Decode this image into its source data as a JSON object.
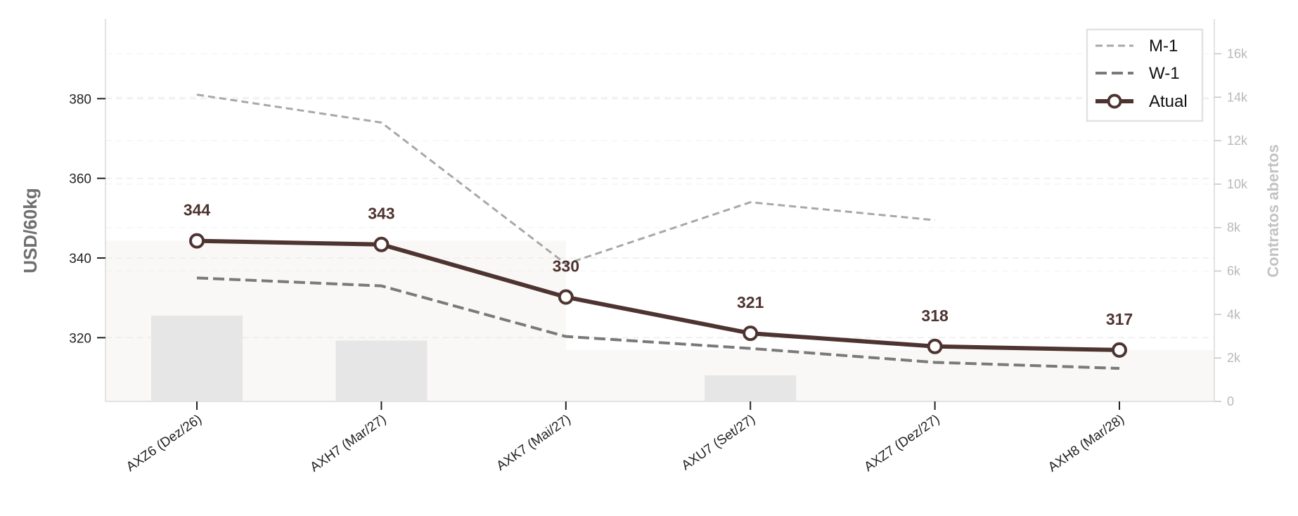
{
  "chart_data": {
    "type": "line",
    "categories": [
      "AXZ6 (Dez/26)",
      "AXH7 (Mar/27)",
      "AXK7 (Mai/27)",
      "AXU7 (Set/27)",
      "AXZ7 (Dez/27)",
      "AXH8 (Mar/28)"
    ],
    "ylabel": "USD/60kg",
    "ylabel_right": "Contratos abertos",
    "ylim": [
      304,
      400
    ],
    "yticks": [
      320,
      340,
      360,
      380
    ],
    "ylim_right": [
      0,
      17600
    ],
    "yticks_right": [
      0,
      2000,
      4000,
      6000,
      8000,
      10000,
      12000,
      14000,
      16000
    ],
    "ytick_labels_right": [
      "0",
      "2k",
      "4k",
      "6k",
      "8k",
      "10k",
      "12k",
      "14k",
      "16k"
    ],
    "series": [
      {
        "name": "M-1",
        "values": [
          381,
          374,
          338.5,
          354,
          349.5,
          null
        ],
        "style": "dashed-light",
        "color": "#a8a8a8"
      },
      {
        "name": "W-1",
        "values": [
          335,
          333,
          320.3,
          317.3,
          313.8,
          312.3
        ],
        "style": "dashed-dark",
        "color": "#7a7a7a"
      },
      {
        "name": "Atual",
        "values": [
          344.3,
          343.4,
          330.2,
          321.1,
          317.8,
          316.9
        ],
        "data_labels": [
          "344",
          "343",
          "330",
          "321",
          "318",
          "317"
        ],
        "style": "solid-markers",
        "color": "#4e3430"
      }
    ],
    "bars": {
      "axis": "right",
      "values": [
        3950,
        2800,
        0,
        1200,
        0,
        0
      ],
      "color": "#e6e6e6"
    },
    "band_color": "#f9f8f6",
    "grid": true,
    "legend_position": "top-right"
  }
}
